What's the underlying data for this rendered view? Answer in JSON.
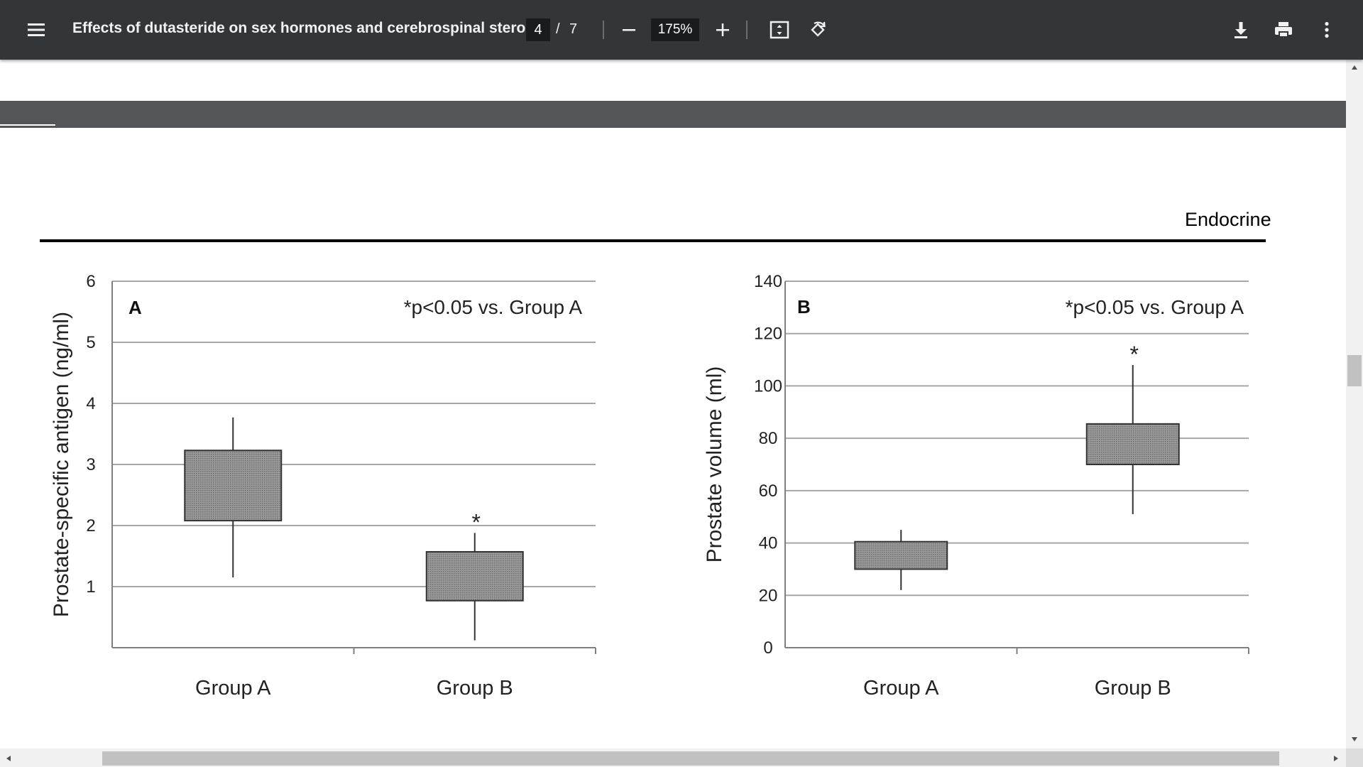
{
  "toolbar": {
    "title": "Effects of dutasteride on sex hormones and cerebrospinal stero...",
    "page_current": "4",
    "page_separator": "/",
    "page_total": "7",
    "zoom": "175%",
    "icons": [
      "menu-icon",
      "zoom-out-icon",
      "zoom-in-icon",
      "fit-page-icon",
      "rotate-icon",
      "download-icon",
      "print-icon",
      "more-options-icon"
    ]
  },
  "document": {
    "running_head": "Endocrine"
  },
  "colors": {
    "toolbar_bg": "#323639",
    "page_gap": "#525659",
    "box_fill": "#8c8c8c"
  },
  "chart_data": [
    {
      "type": "boxplot",
      "panel_label": "A",
      "annotation": "*p<0.05 vs. Group A",
      "xlabel": "",
      "ylabel": "Prostate-specific antigen (ng/ml)",
      "ylim": [
        0,
        6
      ],
      "yticks": [
        "1",
        "2",
        "3",
        "4",
        "5",
        "6"
      ],
      "categories": [
        "Group A",
        "Group B"
      ],
      "boxes": [
        {
          "name": "Group A",
          "whisker_low": 1.15,
          "q1": 2.08,
          "q3": 3.23,
          "whisker_high": 3.77,
          "marker": ""
        },
        {
          "name": "Group B",
          "whisker_low": 0.12,
          "q1": 0.77,
          "q3": 1.57,
          "whisker_high": 1.88,
          "marker": "*"
        }
      ],
      "grid": true
    },
    {
      "type": "boxplot",
      "panel_label": "B",
      "annotation": "*p<0.05 vs. Group A",
      "xlabel": "",
      "ylabel": "Prostate volume (ml)",
      "ylim": [
        0,
        140
      ],
      "yticks": [
        "0",
        "20",
        "40",
        "60",
        "80",
        "100",
        "120",
        "140"
      ],
      "categories": [
        "Group A",
        "Group B"
      ],
      "boxes": [
        {
          "name": "Group A",
          "whisker_low": 22,
          "q1": 30,
          "q3": 40.5,
          "whisker_high": 45,
          "marker": ""
        },
        {
          "name": "Group B",
          "whisker_low": 51,
          "q1": 70,
          "q3": 85.5,
          "whisker_high": 108,
          "marker": "*"
        }
      ],
      "grid": true
    }
  ]
}
